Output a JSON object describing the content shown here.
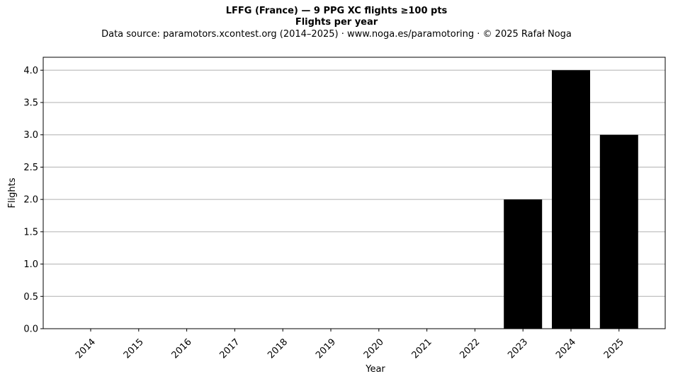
{
  "chart_data": {
    "type": "bar",
    "title_line1": "LFFG (France)  —  9 PPG XC flights ≥100 pts",
    "title_line2": "Flights per year",
    "subtitle": "Data source: paramotors.xcontest.org (2014–2025)  ·  www.noga.es/paramotoring  ·  © 2025 Rafał Noga",
    "xlabel": "Year",
    "ylabel": "Flights",
    "categories": [
      "2014",
      "2015",
      "2016",
      "2017",
      "2018",
      "2019",
      "2020",
      "2021",
      "2022",
      "2023",
      "2024",
      "2025"
    ],
    "values": [
      0,
      0,
      0,
      0,
      0,
      0,
      0,
      0,
      0,
      2,
      4,
      3
    ],
    "ylim": [
      0,
      4.2
    ],
    "yticks": [
      "0.0",
      "0.5",
      "1.0",
      "1.5",
      "2.0",
      "2.5",
      "3.0",
      "3.5",
      "4.0"
    ],
    "bar_color": "#000000",
    "grid_color": "#b0b0b0",
    "grid": "horizontal"
  }
}
